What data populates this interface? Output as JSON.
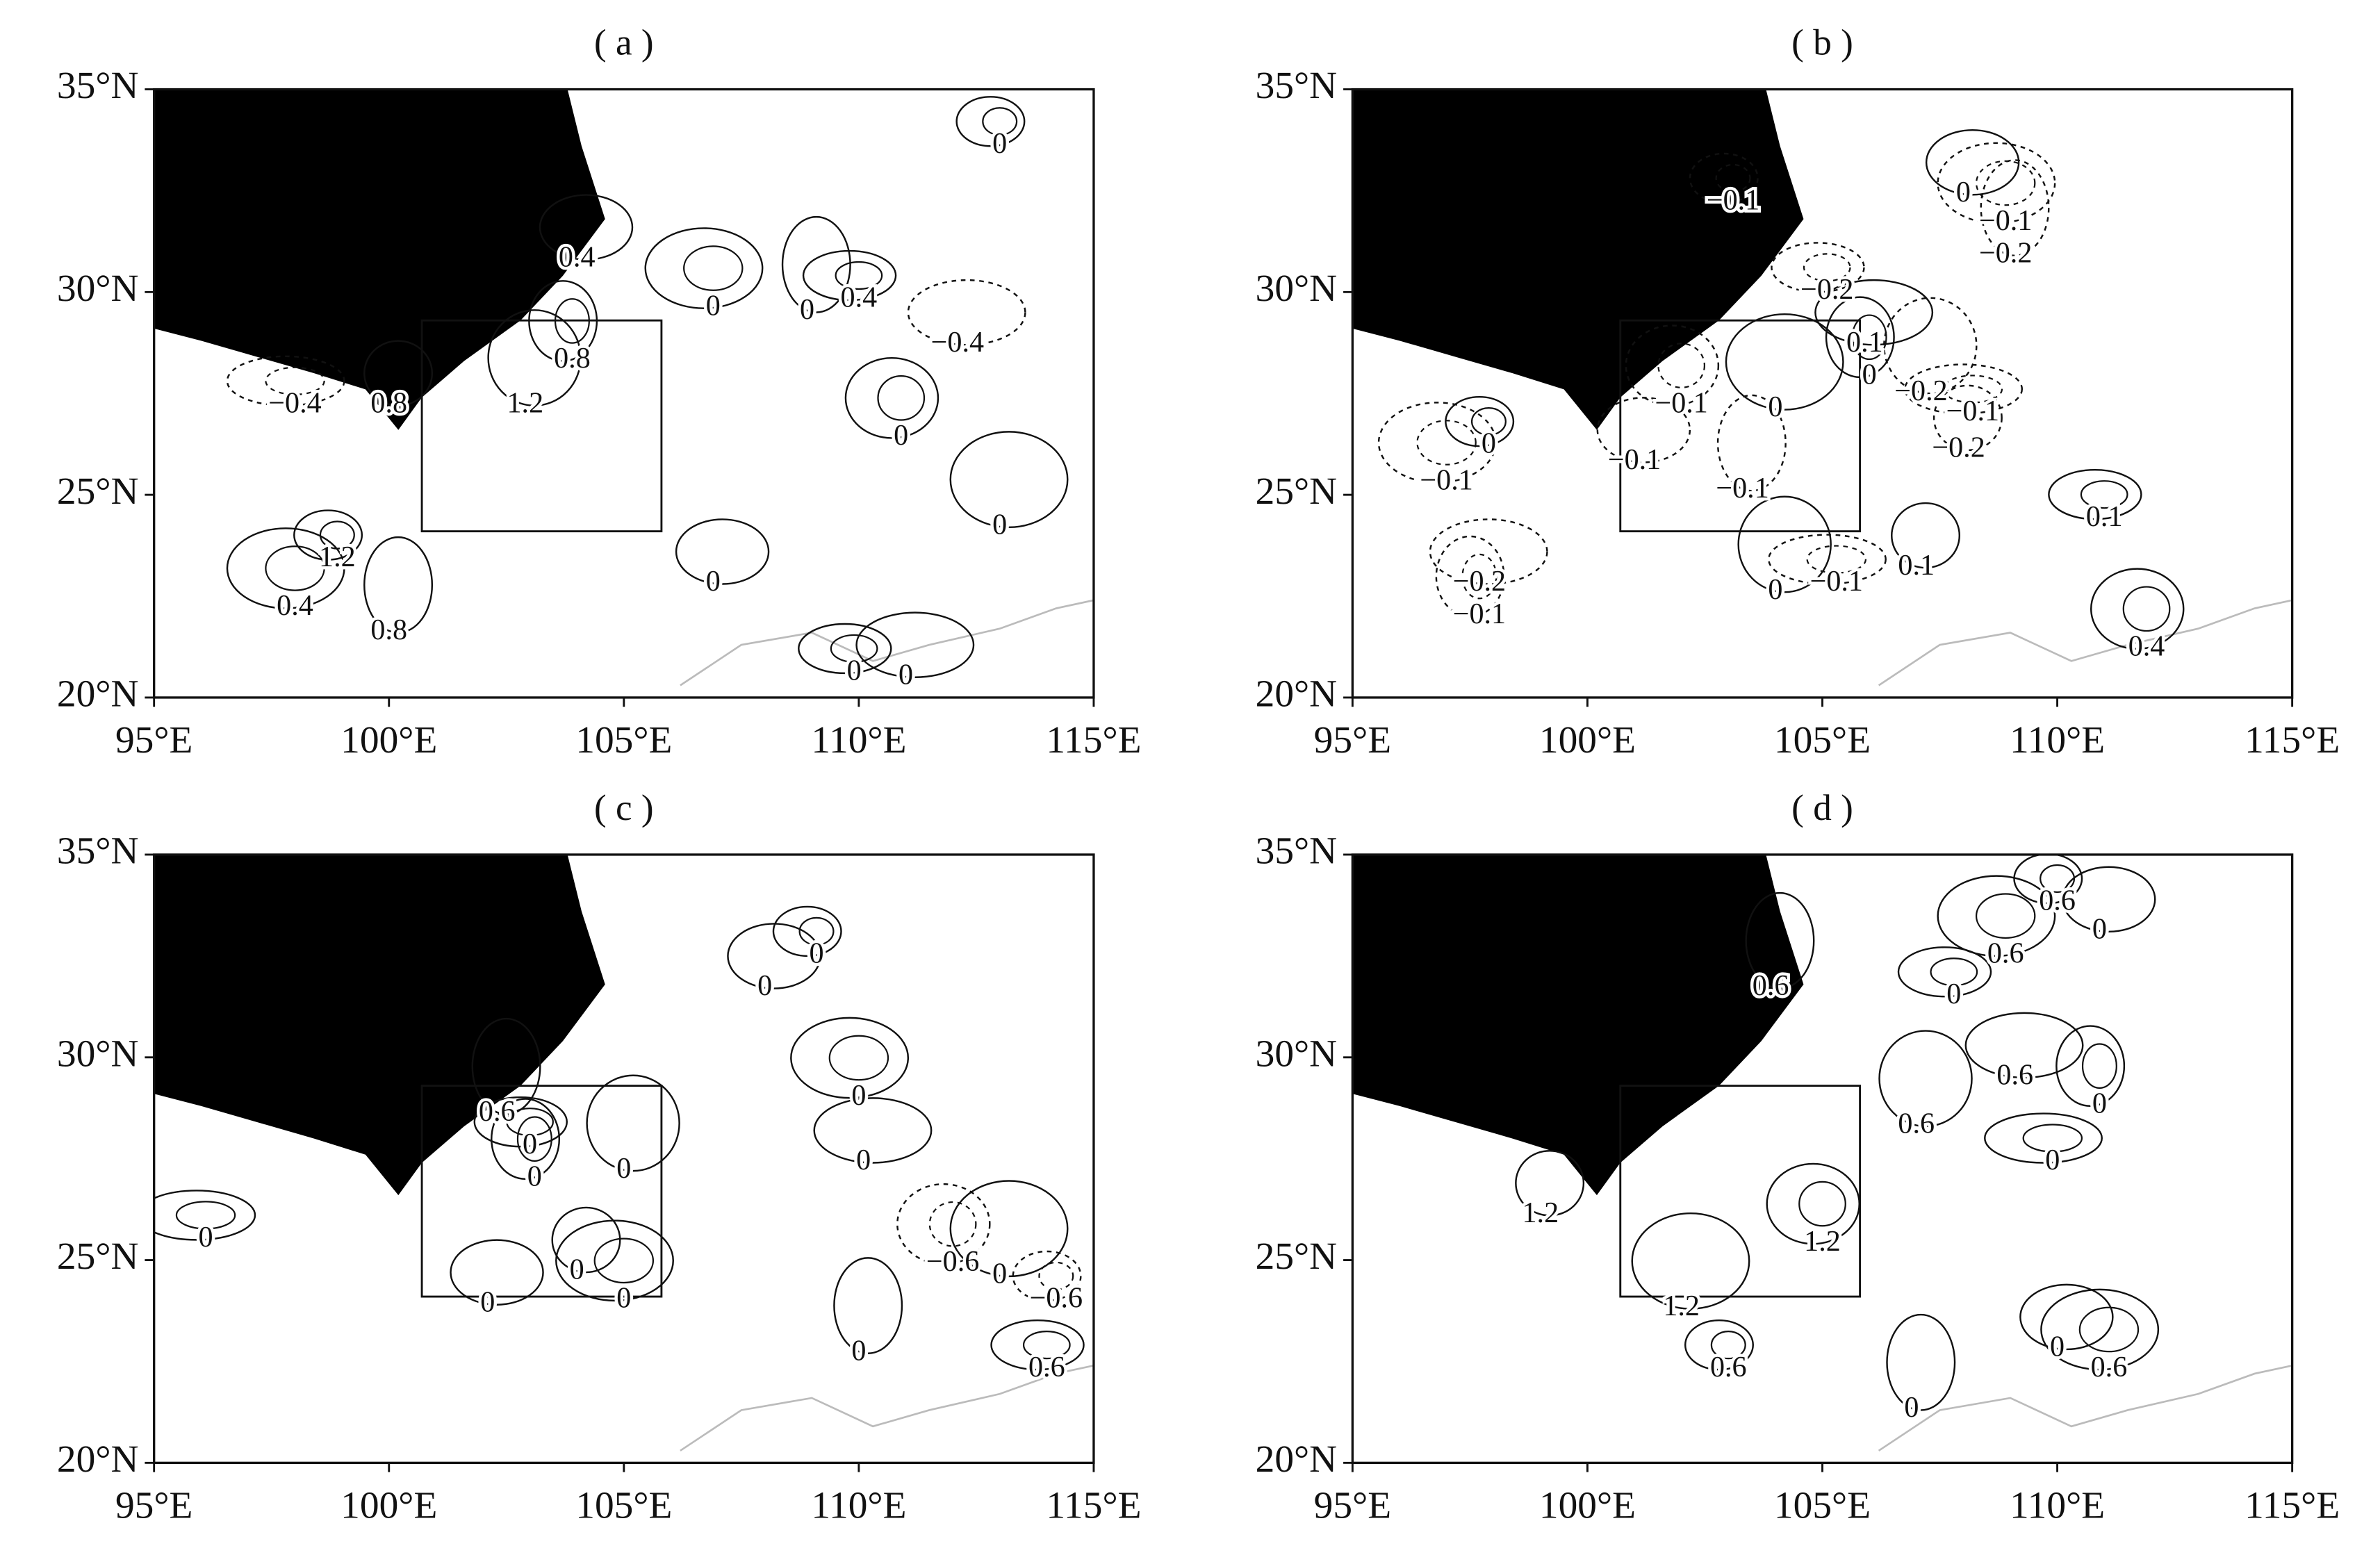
{
  "chart_data": [
    {
      "type": "contour",
      "title": "( a )",
      "xlim": [
        95,
        115
      ],
      "ylim": [
        20,
        35
      ],
      "xticks": [
        {
          "value": 95,
          "label": "95°E"
        },
        {
          "value": 100,
          "label": "100°E"
        },
        {
          "value": 105,
          "label": "105°E"
        },
        {
          "value": 110,
          "label": "110°E"
        },
        {
          "value": 115,
          "label": "115°E"
        }
      ],
      "yticks": [
        {
          "value": 20,
          "label": "20°N"
        },
        {
          "value": 25,
          "label": "25°N"
        },
        {
          "value": 30,
          "label": "30°N"
        },
        {
          "value": 35,
          "label": "35°N"
        }
      ],
      "region": {
        "lon": [
          100.7,
          105.8
        ],
        "lat": [
          24.1,
          29.3
        ]
      },
      "annotations": [
        {
          "text": "0",
          "x": 113.0,
          "y": 33.6
        },
        {
          "text": "0.4",
          "x": 104.0,
          "y": 30.8
        },
        {
          "text": "0",
          "x": 106.9,
          "y": 29.6
        },
        {
          "text": "0",
          "x": 108.9,
          "y": 29.5
        },
        {
          "text": "0.4",
          "x": 110.0,
          "y": 29.8
        },
        {
          "text": "−0.4",
          "x": 112.1,
          "y": 28.7
        },
        {
          "text": "0.8",
          "x": 103.9,
          "y": 28.3
        },
        {
          "text": "1.2",
          "x": 102.9,
          "y": 27.2
        },
        {
          "text": "−0.4",
          "x": 98.0,
          "y": 27.2
        },
        {
          "text": "0.8",
          "x": 100.0,
          "y": 27.2
        },
        {
          "text": "0",
          "x": 110.9,
          "y": 26.4
        },
        {
          "text": "0",
          "x": 113.0,
          "y": 24.2
        },
        {
          "text": "1.2",
          "x": 98.9,
          "y": 23.4
        },
        {
          "text": "0",
          "x": 106.9,
          "y": 22.8
        },
        {
          "text": "0.4",
          "x": 98.0,
          "y": 22.2
        },
        {
          "text": "0.8",
          "x": 100.0,
          "y": 21.6
        },
        {
          "text": "0",
          "x": 109.9,
          "y": 20.6
        },
        {
          "text": "0",
          "x": 111.0,
          "y": 20.5
        }
      ]
    },
    {
      "type": "contour",
      "title": "( b )",
      "xlim": [
        95,
        115
      ],
      "ylim": [
        20,
        35
      ],
      "xticks": [
        {
          "value": 95,
          "label": "95°E"
        },
        {
          "value": 100,
          "label": "100°E"
        },
        {
          "value": 105,
          "label": "105°E"
        },
        {
          "value": 110,
          "label": "110°E"
        },
        {
          "value": 115,
          "label": "115°E"
        }
      ],
      "yticks": [
        {
          "value": 20,
          "label": "20°N"
        },
        {
          "value": 25,
          "label": "25°N"
        },
        {
          "value": 30,
          "label": "30°N"
        },
        {
          "value": 35,
          "label": "35°N"
        }
      ],
      "region": {
        "lon": [
          100.7,
          105.8
        ],
        "lat": [
          24.1,
          29.3
        ]
      },
      "annotations": [
        {
          "text": "−0.1",
          "x": 103.1,
          "y": 32.2
        },
        {
          "text": "0",
          "x": 108.0,
          "y": 32.4
        },
        {
          "text": "−0.1",
          "x": 108.9,
          "y": 31.7
        },
        {
          "text": "−0.2",
          "x": 108.9,
          "y": 30.9
        },
        {
          "text": "−0.2",
          "x": 105.1,
          "y": 30.0
        },
        {
          "text": "0.1",
          "x": 105.9,
          "y": 28.7
        },
        {
          "text": "0",
          "x": 106.0,
          "y": 27.9
        },
        {
          "text": "−0.2",
          "x": 107.1,
          "y": 27.5
        },
        {
          "text": "−0.1",
          "x": 108.2,
          "y": 27.0
        },
        {
          "text": "−0.2",
          "x": 107.9,
          "y": 26.1
        },
        {
          "text": "−0.1",
          "x": 102.0,
          "y": 27.2
        },
        {
          "text": "0",
          "x": 104.0,
          "y": 27.1
        },
        {
          "text": "0",
          "x": 97.9,
          "y": 26.2
        },
        {
          "text": "−0.1",
          "x": 101.0,
          "y": 25.8
        },
        {
          "text": "−0.1",
          "x": 97.0,
          "y": 25.3
        },
        {
          "text": "−0.1",
          "x": 103.3,
          "y": 25.1
        },
        {
          "text": "0.1",
          "x": 111.0,
          "y": 24.4
        },
        {
          "text": "−0.2",
          "x": 97.7,
          "y": 22.8
        },
        {
          "text": "−0.1",
          "x": 97.7,
          "y": 22.0
        },
        {
          "text": "0",
          "x": 104.0,
          "y": 22.6
        },
        {
          "text": "−0.1",
          "x": 105.3,
          "y": 22.8
        },
        {
          "text": "0.1",
          "x": 107.0,
          "y": 23.2
        },
        {
          "text": "0.4",
          "x": 111.9,
          "y": 21.2
        }
      ]
    },
    {
      "type": "contour",
      "title": "( c )",
      "xlim": [
        95,
        115
      ],
      "ylim": [
        20,
        35
      ],
      "xticks": [
        {
          "value": 95,
          "label": "95°E"
        },
        {
          "value": 100,
          "label": "100°E"
        },
        {
          "value": 105,
          "label": "105°E"
        },
        {
          "value": 110,
          "label": "110°E"
        },
        {
          "value": 115,
          "label": "115°E"
        }
      ],
      "yticks": [
        {
          "value": 20,
          "label": "20°N"
        },
        {
          "value": 25,
          "label": "25°N"
        },
        {
          "value": 30,
          "label": "30°N"
        },
        {
          "value": 35,
          "label": "35°N"
        }
      ],
      "region": {
        "lon": [
          100.7,
          105.8
        ],
        "lat": [
          24.1,
          29.3
        ]
      },
      "annotations": [
        {
          "text": "0",
          "x": 109.1,
          "y": 32.5
        },
        {
          "text": "0",
          "x": 108.0,
          "y": 31.7
        },
        {
          "text": "0",
          "x": 110.0,
          "y": 29.0
        },
        {
          "text": "0.6",
          "x": 102.3,
          "y": 28.6
        },
        {
          "text": "0",
          "x": 103.0,
          "y": 27.8
        },
        {
          "text": "0",
          "x": 110.1,
          "y": 27.4
        },
        {
          "text": "0",
          "x": 103.1,
          "y": 27.0
        },
        {
          "text": "0",
          "x": 105.0,
          "y": 27.2
        },
        {
          "text": "0",
          "x": 96.1,
          "y": 25.5
        },
        {
          "text": "0",
          "x": 104.0,
          "y": 24.7
        },
        {
          "text": "−0.6",
          "x": 112.0,
          "y": 24.9
        },
        {
          "text": "0",
          "x": 113.0,
          "y": 24.6
        },
        {
          "text": "−0.6",
          "x": 114.2,
          "y": 24.0
        },
        {
          "text": "0",
          "x": 102.1,
          "y": 23.9
        },
        {
          "text": "0",
          "x": 105.0,
          "y": 24.0
        },
        {
          "text": "0",
          "x": 110.0,
          "y": 22.7
        },
        {
          "text": "0.6",
          "x": 114.0,
          "y": 22.3
        }
      ]
    },
    {
      "type": "contour",
      "title": "( d )",
      "xlim": [
        95,
        115
      ],
      "ylim": [
        20,
        35
      ],
      "xticks": [
        {
          "value": 95,
          "label": "95°E"
        },
        {
          "value": 100,
          "label": "100°E"
        },
        {
          "value": 105,
          "label": "105°E"
        },
        {
          "value": 110,
          "label": "110°E"
        },
        {
          "value": 115,
          "label": "115°E"
        }
      ],
      "yticks": [
        {
          "value": 20,
          "label": "20°N"
        },
        {
          "value": 25,
          "label": "25°N"
        },
        {
          "value": 30,
          "label": "30°N"
        },
        {
          "value": 35,
          "label": "35°N"
        }
      ],
      "region": {
        "lon": [
          100.7,
          105.8
        ],
        "lat": [
          24.1,
          29.3
        ]
      },
      "annotations": [
        {
          "text": "0.6",
          "x": 110.0,
          "y": 33.8
        },
        {
          "text": "0",
          "x": 110.9,
          "y": 33.1
        },
        {
          "text": "0.6",
          "x": 108.9,
          "y": 32.5
        },
        {
          "text": "0.6",
          "x": 103.9,
          "y": 31.7
        },
        {
          "text": "0",
          "x": 107.8,
          "y": 31.5
        },
        {
          "text": "0.6",
          "x": 109.1,
          "y": 29.5
        },
        {
          "text": "0",
          "x": 110.9,
          "y": 28.8
        },
        {
          "text": "0.6",
          "x": 107.0,
          "y": 28.3
        },
        {
          "text": "0",
          "x": 109.9,
          "y": 27.4
        },
        {
          "text": "1.2",
          "x": 99.0,
          "y": 26.1
        },
        {
          "text": "1.2",
          "x": 105.0,
          "y": 25.4
        },
        {
          "text": "1.2",
          "x": 102.0,
          "y": 23.8
        },
        {
          "text": "0.6",
          "x": 103.0,
          "y": 22.3
        },
        {
          "text": "0",
          "x": 110.0,
          "y": 22.8
        },
        {
          "text": "0.6",
          "x": 111.1,
          "y": 22.3
        },
        {
          "text": "0",
          "x": 106.9,
          "y": 21.3
        }
      ]
    }
  ]
}
